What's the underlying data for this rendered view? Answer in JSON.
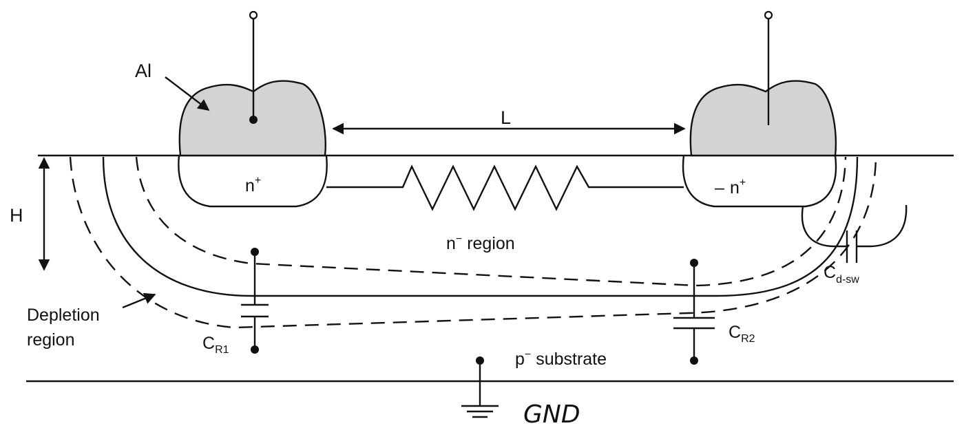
{
  "labels": {
    "al": "Al",
    "length": "L",
    "height": "H",
    "n_plus_left": "n",
    "n_plus_right": "n",
    "plus_sign": "+",
    "minus_mark": "–",
    "n_minus_region_n": "n",
    "n_minus_region_rest": " region",
    "minus_sign": "−",
    "p_substrate_p": "p",
    "p_substrate_rest": " substrate",
    "depletion_line1": "Depletion",
    "depletion_line2": "region",
    "cr1_c": "C",
    "cr1_sub": "R1",
    "cr2_c": "C",
    "cr2_sub": "R2",
    "cdsw_c": "C",
    "cdsw_sub": "d-sw",
    "gnd": "GND"
  }
}
